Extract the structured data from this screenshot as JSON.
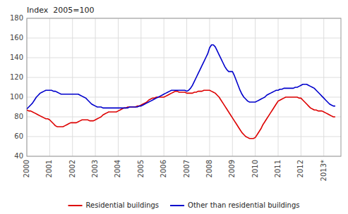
{
  "chart_data": {
    "type": "line",
    "title": "Index  2005=100",
    "x": [
      2000.0,
      2000.083,
      2000.167,
      2000.25,
      2000.333,
      2000.417,
      2000.5,
      2000.583,
      2000.667,
      2000.75,
      2000.833,
      2000.917,
      2001.0,
      2001.083,
      2001.167,
      2001.25,
      2001.333,
      2001.417,
      2001.5,
      2001.583,
      2001.667,
      2001.75,
      2001.833,
      2001.917,
      2002.0,
      2002.083,
      2002.167,
      2002.25,
      2002.333,
      2002.417,
      2002.5,
      2002.583,
      2002.667,
      2002.75,
      2002.833,
      2002.917,
      2003.0,
      2003.083,
      2003.167,
      2003.25,
      2003.333,
      2003.417,
      2003.5,
      2003.583,
      2003.667,
      2003.75,
      2003.833,
      2003.917,
      2004.0,
      2004.083,
      2004.167,
      2004.25,
      2004.333,
      2004.417,
      2004.5,
      2004.583,
      2004.667,
      2004.75,
      2004.833,
      2004.917,
      2005.0,
      2005.083,
      2005.167,
      2005.25,
      2005.333,
      2005.417,
      2005.5,
      2005.583,
      2005.667,
      2005.75,
      2005.833,
      2005.917,
      2006.0,
      2006.083,
      2006.167,
      2006.25,
      2006.333,
      2006.417,
      2006.5,
      2006.583,
      2006.667,
      2006.75,
      2006.833,
      2006.917,
      2007.0,
      2007.083,
      2007.167,
      2007.25,
      2007.333,
      2007.417,
      2007.5,
      2007.583,
      2007.667,
      2007.75,
      2007.833,
      2007.917,
      2008.0,
      2008.083,
      2008.167,
      2008.25,
      2008.333,
      2008.417,
      2008.5,
      2008.583,
      2008.667,
      2008.75,
      2008.833,
      2008.917,
      2009.0,
      2009.083,
      2009.167,
      2009.25,
      2009.333,
      2009.417,
      2009.5,
      2009.583,
      2009.667,
      2009.75,
      2009.833,
      2009.917,
      2010.0,
      2010.083,
      2010.167,
      2010.25,
      2010.333,
      2010.417,
      2010.5,
      2010.583,
      2010.667,
      2010.75,
      2010.833,
      2010.917,
      2011.0,
      2011.083,
      2011.167,
      2011.25,
      2011.333,
      2011.417,
      2011.5,
      2011.583,
      2011.667,
      2011.75,
      2011.833,
      2011.917,
      2012.0,
      2012.083,
      2012.167,
      2012.25,
      2012.333,
      2012.417,
      2012.5,
      2012.583,
      2012.667,
      2012.75,
      2012.833,
      2012.917,
      2013.0,
      2013.083,
      2013.167,
      2013.25,
      2013.333,
      2013.417,
      2013.5
    ],
    "series": [
      {
        "name": "Residential buildings",
        "color": "#dd0000",
        "values": [
          87,
          86,
          86,
          85,
          84,
          83,
          82,
          81,
          80,
          79,
          78,
          78,
          77,
          75,
          73,
          71,
          70,
          70,
          70,
          70,
          71,
          72,
          73,
          74,
          74,
          74,
          74,
          75,
          76,
          77,
          77,
          77,
          77,
          76,
          76,
          76,
          77,
          78,
          79,
          80,
          82,
          83,
          84,
          85,
          85,
          85,
          85,
          85,
          86,
          87,
          88,
          89,
          89,
          90,
          90,
          90,
          90,
          90,
          91,
          91,
          92,
          93,
          94,
          95,
          97,
          98,
          99,
          99,
          100,
          100,
          100,
          100,
          100,
          101,
          102,
          103,
          104,
          105,
          106,
          106,
          105,
          105,
          105,
          105,
          104,
          104,
          104,
          104,
          105,
          105,
          106,
          106,
          106,
          107,
          107,
          107,
          107,
          106,
          105,
          104,
          102,
          100,
          97,
          94,
          91,
          88,
          85,
          82,
          79,
          76,
          73,
          70,
          67,
          64,
          62,
          60,
          59,
          58,
          58,
          58,
          59,
          62,
          65,
          68,
          72,
          75,
          78,
          81,
          84,
          87,
          90,
          93,
          96,
          97,
          98,
          99,
          100,
          100,
          100,
          100,
          100,
          100,
          100,
          99,
          99,
          97,
          95,
          93,
          91,
          89,
          88,
          87,
          87,
          86,
          86,
          86,
          85,
          84,
          83,
          82,
          81,
          80,
          80
        ]
      },
      {
        "name": "Other than residential buildings",
        "color": "#0000cc",
        "values": [
          88,
          90,
          92,
          94,
          97,
          100,
          102,
          104,
          105,
          106,
          107,
          107,
          107,
          107,
          106,
          106,
          105,
          104,
          103,
          103,
          103,
          103,
          103,
          103,
          103,
          103,
          103,
          103,
          102,
          101,
          100,
          99,
          97,
          95,
          93,
          92,
          91,
          90,
          90,
          90,
          89,
          89,
          89,
          89,
          89,
          89,
          89,
          89,
          89,
          89,
          89,
          89,
          89,
          89,
          90,
          90,
          90,
          90,
          90,
          91,
          91,
          92,
          93,
          94,
          95,
          96,
          97,
          98,
          99,
          100,
          101,
          102,
          103,
          104,
          105,
          106,
          107,
          107,
          107,
          107,
          107,
          107,
          107,
          107,
          106,
          107,
          109,
          112,
          116,
          120,
          124,
          128,
          132,
          136,
          140,
          144,
          150,
          153,
          153,
          151,
          147,
          143,
          139,
          135,
          131,
          128,
          126,
          126,
          126,
          122,
          117,
          112,
          107,
          103,
          100,
          98,
          96,
          95,
          95,
          95,
          95,
          96,
          97,
          98,
          99,
          100,
          102,
          103,
          104,
          105,
          106,
          107,
          107,
          108,
          108,
          109,
          109,
          109,
          109,
          109,
          109,
          110,
          110,
          111,
          112,
          113,
          113,
          113,
          112,
          111,
          110,
          109,
          107,
          105,
          103,
          101,
          99,
          97,
          95,
          93,
          92,
          91,
          91
        ]
      }
    ],
    "xlim": [
      2000,
      2013.75
    ],
    "xticks": [
      2000,
      2001,
      2002,
      2003,
      2004,
      2005,
      2006,
      2007,
      2008,
      2009,
      2010,
      2011,
      2012,
      {
        "value": 2013,
        "label": "2013*"
      }
    ],
    "ylim": [
      40,
      180
    ],
    "yticks": [
      40,
      60,
      80,
      100,
      120,
      140,
      160,
      180
    ],
    "grid": true,
    "legend": "bottom"
  }
}
